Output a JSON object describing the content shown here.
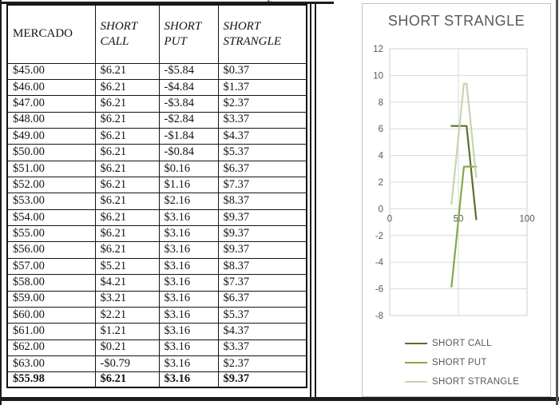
{
  "page": {
    "cutoff_text_fragment": "g"
  },
  "table": {
    "headers": [
      "MERCADO",
      "SHORT CALL",
      "SHORT PUT",
      "SHORT STRANGLE"
    ],
    "rows": [
      [
        "$45.00",
        "$6.21",
        "-$5.84",
        "$0.37"
      ],
      [
        "$46.00",
        "$6.21",
        "-$4.84",
        "$1.37"
      ],
      [
        "$47.00",
        "$6.21",
        "-$3.84",
        "$2.37"
      ],
      [
        "$48.00",
        "$6.21",
        "-$2.84",
        "$3.37"
      ],
      [
        "$49.00",
        "$6.21",
        "-$1.84",
        "$4.37"
      ],
      [
        "$50.00",
        "$6.21",
        "-$0.84",
        "$5.37"
      ],
      [
        "$51.00",
        "$6.21",
        "$0.16",
        "$6.37"
      ],
      [
        "$52.00",
        "$6.21",
        "$1.16",
        "$7.37"
      ],
      [
        "$53.00",
        "$6.21",
        "$2.16",
        "$8.37"
      ],
      [
        "$54.00",
        "$6.21",
        "$3.16",
        "$9.37"
      ],
      [
        "$55.00",
        "$6.21",
        "$3.16",
        "$9.37"
      ],
      [
        "$56.00",
        "$6.21",
        "$3.16",
        "$9.37"
      ],
      [
        "$57.00",
        "$5.21",
        "$3.16",
        "$8.37"
      ],
      [
        "$58.00",
        "$4.21",
        "$3.16",
        "$7.37"
      ],
      [
        "$59.00",
        "$3.21",
        "$3.16",
        "$6.37"
      ],
      [
        "$60.00",
        "$2.21",
        "$3.16",
        "$5.37"
      ],
      [
        "$61.00",
        "$1.21",
        "$3.16",
        "$4.37"
      ],
      [
        "$62.00",
        "$0.21",
        "$3.16",
        "$3.37"
      ],
      [
        "$63.00",
        "-$0.79",
        "$3.16",
        "$2.37"
      ]
    ],
    "total_row": [
      "$55.98",
      "$6.21",
      "$3.16",
      "$9.37"
    ]
  },
  "chart_data": {
    "type": "line",
    "title": "SHORT STRANGLE",
    "xlabel": "",
    "ylabel": "",
    "xlim": [
      0,
      100
    ],
    "ylim": [
      -8,
      12
    ],
    "x_ticks": [
      0,
      50,
      100
    ],
    "y_ticks": [
      12,
      10,
      8,
      6,
      4,
      2,
      0,
      -2,
      -4,
      -6,
      -8
    ],
    "grid": true,
    "legend_position": "bottom",
    "x": [
      45,
      46,
      47,
      48,
      49,
      50,
      51,
      52,
      53,
      54,
      55,
      56,
      57,
      58,
      59,
      60,
      61,
      62,
      63
    ],
    "series": [
      {
        "name": "SHORT CALL",
        "color": "#5a702d",
        "values": [
          6.21,
          6.21,
          6.21,
          6.21,
          6.21,
          6.21,
          6.21,
          6.21,
          6.21,
          6.21,
          6.21,
          6.21,
          5.21,
          4.21,
          3.21,
          2.21,
          1.21,
          0.21,
          -0.79
        ]
      },
      {
        "name": "SHORT PUT",
        "color": "#85a94a",
        "values": [
          -5.84,
          -4.84,
          -3.84,
          -2.84,
          -1.84,
          -0.84,
          0.16,
          1.16,
          2.16,
          3.16,
          3.16,
          3.16,
          3.16,
          3.16,
          3.16,
          3.16,
          3.16,
          3.16,
          3.16
        ]
      },
      {
        "name": "SHORT STRANGLE",
        "color": "#c7d6ae",
        "values": [
          0.37,
          1.37,
          2.37,
          3.37,
          4.37,
          5.37,
          6.37,
          7.37,
          8.37,
          9.37,
          9.37,
          9.37,
          8.37,
          7.37,
          6.37,
          5.37,
          4.37,
          3.37,
          2.37
        ]
      }
    ],
    "colors": {
      "grid": "#d9d9d9",
      "axis_text": "#595959",
      "title_text": "#595959"
    }
  }
}
